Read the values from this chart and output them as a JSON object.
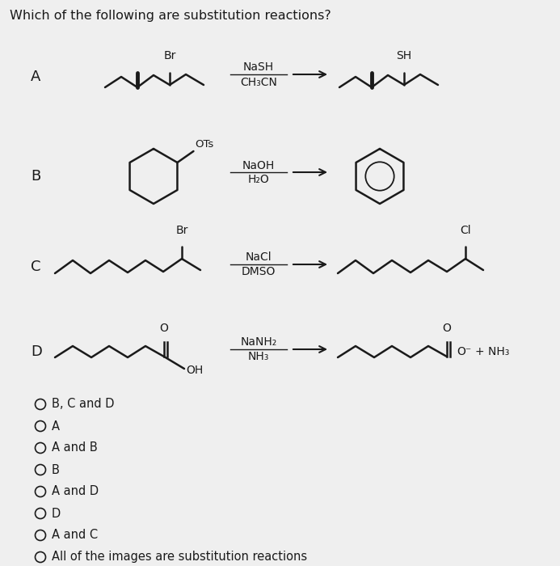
{
  "title": "Which of the following are substitution reactions?",
  "background_color": "#efefef",
  "text_color": "#1a1a1a",
  "choices": [
    "B, C and D",
    "A",
    "A and B",
    "B",
    "A and D",
    "D",
    "A and C",
    "All of the images are substitution reactions"
  ],
  "filled_circles": [],
  "figsize": [
    6.93,
    7.0
  ],
  "dpi": 100
}
